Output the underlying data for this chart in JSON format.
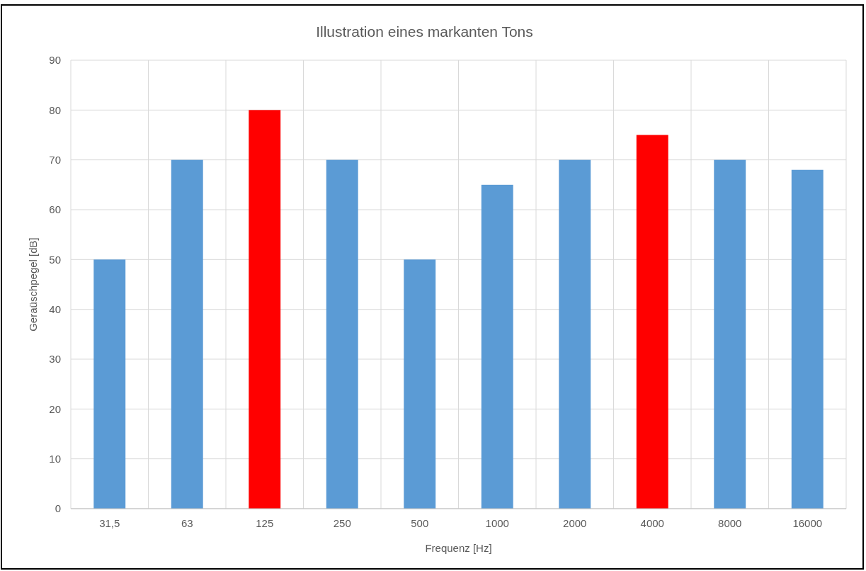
{
  "chart_data": {
    "type": "bar",
    "title": "Illustration eines markanten Tons",
    "xlabel": "Frequenz [Hz]",
    "ylabel": "Geraüschpegel [dB]",
    "categories": [
      "31,5",
      "63",
      "125",
      "250",
      "500",
      "1000",
      "2000",
      "4000",
      "8000",
      "16000"
    ],
    "values": [
      50,
      70,
      80,
      70,
      50,
      65,
      70,
      75,
      70,
      68
    ],
    "colors": [
      "#5b9bd5",
      "#5b9bd5",
      "#ff0000",
      "#5b9bd5",
      "#5b9bd5",
      "#5b9bd5",
      "#5b9bd5",
      "#ff0000",
      "#5b9bd5",
      "#5b9bd5"
    ],
    "ylim": [
      0,
      90
    ],
    "yticks": [
      0,
      10,
      20,
      30,
      40,
      50,
      60,
      70,
      80,
      90
    ],
    "grid": true
  }
}
